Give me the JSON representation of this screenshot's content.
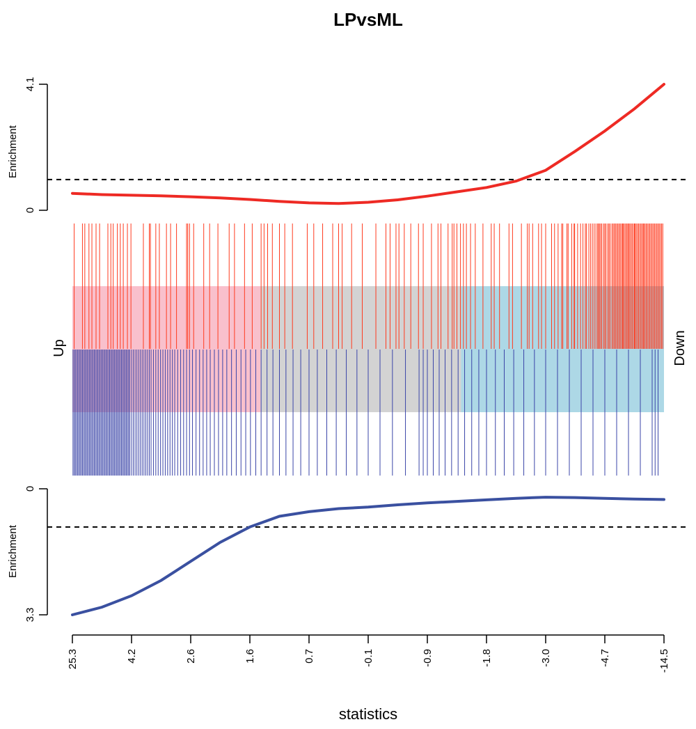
{
  "chart_data": {
    "type": "barcode",
    "title": "LPvsML",
    "xlabel": "statistics",
    "x_tick_labels": [
      "25.3",
      "4.2",
      "2.6",
      "1.6",
      "0.7",
      "-0.1",
      "-0.9",
      "-1.8",
      "-3.0",
      "-4.7",
      "-14.5"
    ],
    "side_labels": {
      "left": "Up",
      "right": "Down"
    },
    "top_panel": {
      "ylabel": "Enrichment",
      "ylim": [
        0,
        4.1
      ],
      "y_tick_labels": [
        "0",
        "4.1"
      ],
      "reference_level": 1.0,
      "line_color": "#ee2a24",
      "curve": {
        "x": [
          0,
          0.05,
          0.1,
          0.15,
          0.2,
          0.25,
          0.3,
          0.35,
          0.4,
          0.45,
          0.5,
          0.55,
          0.6,
          0.65,
          0.7,
          0.75,
          0.8,
          0.85,
          0.9,
          0.95,
          1.0
        ],
        "y": [
          0.55,
          0.51,
          0.49,
          0.47,
          0.44,
          0.4,
          0.35,
          0.29,
          0.24,
          0.22,
          0.26,
          0.34,
          0.46,
          0.6,
          0.74,
          0.95,
          1.3,
          1.92,
          2.58,
          3.3,
          4.1
        ]
      }
    },
    "bottom_panel": {
      "ylabel": "Enrichment",
      "ylim": [
        0,
        3.3
      ],
      "y_tick_labels": [
        "0",
        "3.3"
      ],
      "reference_level": 1.0,
      "line_color": "#3a50a0",
      "curve": {
        "x": [
          0,
          0.05,
          0.1,
          0.15,
          0.2,
          0.25,
          0.3,
          0.35,
          0.4,
          0.45,
          0.5,
          0.55,
          0.6,
          0.65,
          0.7,
          0.75,
          0.8,
          0.85,
          0.9,
          0.95,
          1.0
        ],
        "y": [
          3.3,
          3.1,
          2.8,
          2.4,
          1.9,
          1.4,
          1.0,
          0.72,
          0.6,
          0.52,
          0.48,
          0.42,
          0.37,
          0.33,
          0.29,
          0.25,
          0.22,
          0.23,
          0.25,
          0.27,
          0.28
        ]
      }
    },
    "group_bands": [
      {
        "name": "up",
        "from": 0.0,
        "to": 0.318,
        "color": "#f9c0cc"
      },
      {
        "name": "middle",
        "from": 0.318,
        "to": 0.657,
        "color": "#d3d3d3"
      },
      {
        "name": "down",
        "from": 0.657,
        "to": 1.0,
        "color": "#add8e6"
      }
    ],
    "up_set_barcode_color": "#ff3b1f",
    "down_set_barcode_color": "#3b45a8",
    "up_set_positions": [
      0.003,
      0.017,
      0.021,
      0.028,
      0.033,
      0.04,
      0.046,
      0.06,
      0.065,
      0.069,
      0.076,
      0.081,
      0.086,
      0.093,
      0.099,
      0.12,
      0.13,
      0.132,
      0.141,
      0.147,
      0.159,
      0.166,
      0.176,
      0.193,
      0.195,
      0.198,
      0.205,
      0.222,
      0.232,
      0.246,
      0.265,
      0.274,
      0.291,
      0.304,
      0.319,
      0.324,
      0.33,
      0.338,
      0.35,
      0.359,
      0.372,
      0.397,
      0.408,
      0.423,
      0.44,
      0.45,
      0.456,
      0.472,
      0.49,
      0.513,
      0.53,
      0.537,
      0.547,
      0.552,
      0.561,
      0.572,
      0.585,
      0.593,
      0.607,
      0.618,
      0.623,
      0.635,
      0.642,
      0.645,
      0.65,
      0.656,
      0.661,
      0.666,
      0.673,
      0.681,
      0.694,
      0.708,
      0.713,
      0.722,
      0.738,
      0.744,
      0.759,
      0.769,
      0.772,
      0.778,
      0.788,
      0.793,
      0.8,
      0.81,
      0.815,
      0.821,
      0.827,
      0.829,
      0.836,
      0.838,
      0.844,
      0.848,
      0.849,
      0.854,
      0.859,
      0.863,
      0.867,
      0.869,
      0.873,
      0.876,
      0.879,
      0.882,
      0.885,
      0.888,
      0.889,
      0.891,
      0.893,
      0.895,
      0.898,
      0.9,
      0.902,
      0.905,
      0.907,
      0.909,
      0.912,
      0.914,
      0.916,
      0.918,
      0.92,
      0.922,
      0.924,
      0.926,
      0.928,
      0.93,
      0.931,
      0.933,
      0.935,
      0.937,
      0.939,
      0.94,
      0.942,
      0.944,
      0.946,
      0.948,
      0.95,
      0.951,
      0.953,
      0.955,
      0.957,
      0.959,
      0.961,
      0.963,
      0.965,
      0.966,
      0.968,
      0.97,
      0.972,
      0.974,
      0.976,
      0.978,
      0.98,
      0.982,
      0.984,
      0.986,
      0.988,
      0.99,
      0.992,
      0.994,
      0.996,
      0.998
    ],
    "down_set_positions": [
      0.001,
      0.003,
      0.005,
      0.007,
      0.009,
      0.011,
      0.013,
      0.015,
      0.017,
      0.019,
      0.021,
      0.023,
      0.025,
      0.027,
      0.029,
      0.031,
      0.033,
      0.035,
      0.037,
      0.039,
      0.041,
      0.043,
      0.045,
      0.047,
      0.049,
      0.051,
      0.053,
      0.055,
      0.057,
      0.059,
      0.061,
      0.063,
      0.065,
      0.067,
      0.069,
      0.071,
      0.073,
      0.075,
      0.077,
      0.079,
      0.081,
      0.083,
      0.085,
      0.087,
      0.089,
      0.091,
      0.093,
      0.095,
      0.097,
      0.1,
      0.103,
      0.106,
      0.109,
      0.112,
      0.115,
      0.118,
      0.121,
      0.124,
      0.127,
      0.13,
      0.133,
      0.137,
      0.141,
      0.145,
      0.149,
      0.153,
      0.157,
      0.161,
      0.165,
      0.169,
      0.173,
      0.178,
      0.183,
      0.188,
      0.193,
      0.198,
      0.203,
      0.209,
      0.215,
      0.221,
      0.227,
      0.233,
      0.24,
      0.247,
      0.254,
      0.261,
      0.269,
      0.277,
      0.285,
      0.293,
      0.301,
      0.31,
      0.319,
      0.329,
      0.339,
      0.35,
      0.361,
      0.373,
      0.386,
      0.4,
      0.414,
      0.43,
      0.446,
      0.463,
      0.481,
      0.5,
      0.52,
      0.541,
      0.563,
      0.586,
      0.593,
      0.6,
      0.61,
      0.62,
      0.63,
      0.641,
      0.652,
      0.663,
      0.675,
      0.687,
      0.7,
      0.715,
      0.73,
      0.746,
      0.763,
      0.781,
      0.8,
      0.82,
      0.84,
      0.86,
      0.88,
      0.9,
      0.92,
      0.94,
      0.96,
      0.98,
      0.985,
      0.99
    ]
  }
}
